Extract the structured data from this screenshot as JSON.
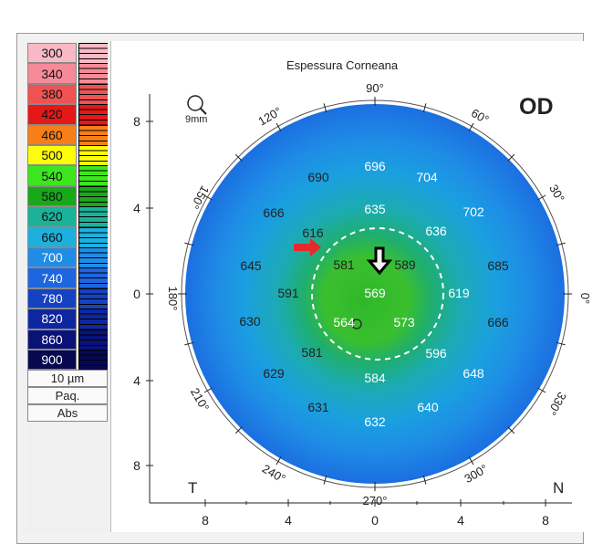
{
  "title": "Espessura Corneana",
  "eye": "OD",
  "zoom_label": "9mm",
  "scale": {
    "entries": [
      {
        "label": "300",
        "color": "#f7b9c4",
        "text": "#111111"
      },
      {
        "label": "340",
        "color": "#f58b98",
        "text": "#111111"
      },
      {
        "label": "380",
        "color": "#ef5252",
        "text": "#111111"
      },
      {
        "label": "420",
        "color": "#e51818",
        "text": "#111111"
      },
      {
        "label": "460",
        "color": "#f77f1a",
        "text": "#111111"
      },
      {
        "label": "500",
        "color": "#fdfd0a",
        "text": "#111111"
      },
      {
        "label": "540",
        "color": "#3de61e",
        "text": "#111111"
      },
      {
        "label": "580",
        "color": "#18a81a",
        "text": "#111111"
      },
      {
        "label": "620",
        "color": "#1ab39a",
        "text": "#111111"
      },
      {
        "label": "660",
        "color": "#1cb0dd",
        "text": "#111111"
      },
      {
        "label": "700",
        "color": "#1f8de6",
        "text": "#ffffff"
      },
      {
        "label": "740",
        "color": "#1e66df",
        "text": "#ffffff"
      },
      {
        "label": "780",
        "color": "#1542c3",
        "text": "#ffffff"
      },
      {
        "label": "820",
        "color": "#0e27a0",
        "text": "#ffffff"
      },
      {
        "label": "860",
        "color": "#0a1278",
        "text": "#ffffff"
      },
      {
        "label": "900",
        "color": "#060850",
        "text": "#ffffff"
      }
    ],
    "step_label": "10 µm",
    "mode_1": "Paq.",
    "mode_2": "Abs"
  },
  "axes": {
    "y_ticks": [
      "8",
      "4",
      "0",
      "4",
      "8"
    ],
    "x_ticks": [
      "8",
      "4",
      "0",
      "4",
      "8"
    ],
    "left_label": "T",
    "right_label": "N",
    "degree_labels": [
      "90°",
      "60°",
      "30°",
      "0°",
      "330°",
      "300°",
      "270°",
      "240°",
      "210°",
      "180°",
      "150°",
      "120°"
    ]
  },
  "thickness_values": [
    {
      "v": "696",
      "c": "#ffffff"
    },
    {
      "v": "690",
      "c": "#222222"
    },
    {
      "v": "704",
      "c": "#ffffff"
    },
    {
      "v": "666",
      "c": "#222222"
    },
    {
      "v": "635",
      "c": "#ffffff"
    },
    {
      "v": "702",
      "c": "#ffffff"
    },
    {
      "v": "616",
      "c": "#222222"
    },
    {
      "v": "636",
      "c": "#ffffff"
    },
    {
      "v": "645",
      "c": "#222222"
    },
    {
      "v": "581",
      "c": "#222222"
    },
    {
      "v": "589",
      "c": "#222222"
    },
    {
      "v": "685",
      "c": "#222222"
    },
    {
      "v": "591",
      "c": "#222222"
    },
    {
      "v": "569",
      "c": "#ffffff"
    },
    {
      "v": "619",
      "c": "#ffffff"
    },
    {
      "v": "630",
      "c": "#222222"
    },
    {
      "v": "564",
      "c": "#ffffff"
    },
    {
      "v": "573",
      "c": "#ffffff"
    },
    {
      "v": "666",
      "c": "#222222"
    },
    {
      "v": "581",
      "c": "#222222"
    },
    {
      "v": "596",
      "c": "#ffffff"
    },
    {
      "v": "629",
      "c": "#222222"
    },
    {
      "v": "584",
      "c": "#ffffff"
    },
    {
      "v": "648",
      "c": "#ffffff"
    },
    {
      "v": "631",
      "c": "#222222"
    },
    {
      "v": "640",
      "c": "#ffffff"
    },
    {
      "v": "632",
      "c": "#ffffff"
    }
  ]
}
